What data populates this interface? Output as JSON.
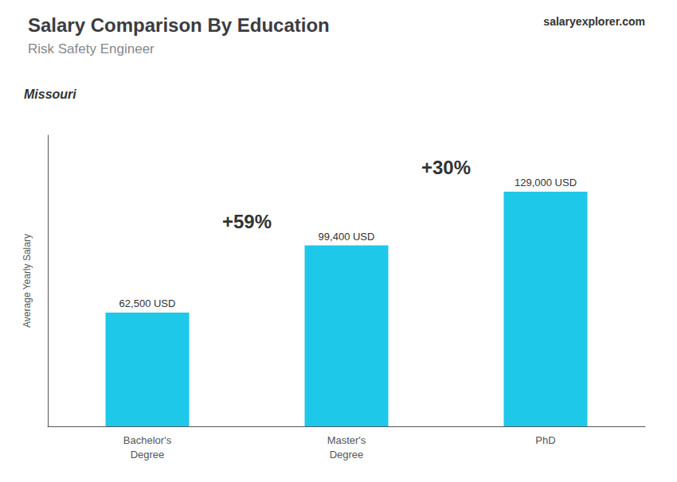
{
  "chart_data": {
    "type": "bar",
    "title": "Salary Comparison By Education",
    "subtitle": "Risk Safety Engineer",
    "ylabel": "Average Yearly Salary",
    "annotations": [
      "Missouri",
      "salaryexplorer.com",
      "+59%",
      "+30%"
    ],
    "categories": [
      "Bachelor's\nDegree",
      "Master's\nDegree",
      "PhD"
    ],
    "values": [
      62500,
      99400,
      129000
    ],
    "value_labels": [
      "62,500 USD",
      "99,400 USD",
      "129,000 USD"
    ],
    "color": "#1EC8E8",
    "ylim": [
      0,
      160000
    ],
    "grid": false,
    "data_labels": true,
    "tick_labels": "x"
  }
}
